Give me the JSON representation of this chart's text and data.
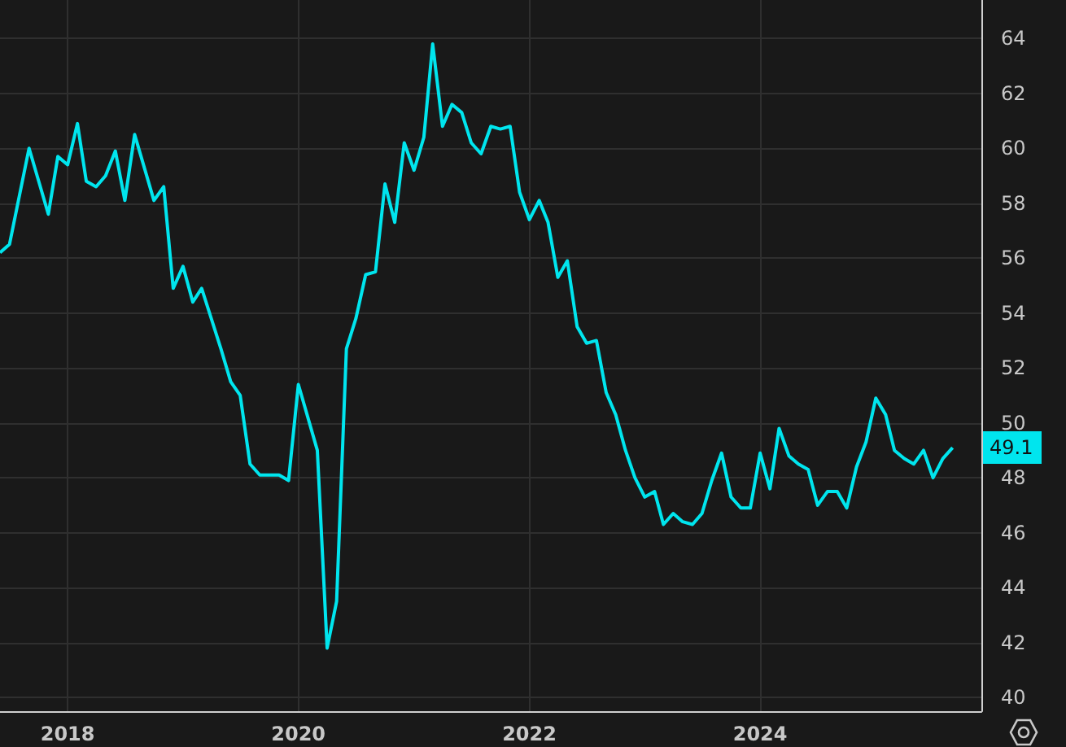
{
  "chart_data": {
    "type": "line",
    "color": "#00e5ee",
    "x": [
      "2017-06",
      "2017-07",
      "2017-09",
      "2017-11",
      "2017-12",
      "2018-01",
      "2018-02",
      "2018-03",
      "2018-04",
      "2018-05",
      "2018-06",
      "2018-07",
      "2018-08",
      "2018-10",
      "2018-11",
      "2018-12",
      "2019-01",
      "2019-02",
      "2019-03",
      "2019-05",
      "2019-06",
      "2019-07",
      "2019-08",
      "2019-09",
      "2019-11",
      "2019-12",
      "2020-01",
      "2020-03",
      "2020-04",
      "2020-05",
      "2020-06",
      "2020-07",
      "2020-08",
      "2020-09",
      "2020-10",
      "2020-11",
      "2020-12",
      "2021-01",
      "2021-02",
      "2021-03",
      "2021-04",
      "2021-05",
      "2021-06",
      "2021-07",
      "2021-08",
      "2021-09",
      "2021-10",
      "2021-11",
      "2021-12",
      "2022-01",
      "2022-02",
      "2022-03",
      "2022-04",
      "2022-05",
      "2022-06",
      "2022-07",
      "2022-08",
      "2022-09",
      "2022-10",
      "2022-11",
      "2022-12",
      "2023-01",
      "2023-02",
      "2023-03",
      "2023-04",
      "2023-05",
      "2023-06",
      "2023-07",
      "2023-08",
      "2023-09",
      "2023-10",
      "2023-11",
      "2023-12",
      "2024-01",
      "2024-02",
      "2024-03",
      "2024-04",
      "2024-05",
      "2024-06",
      "2024-07",
      "2024-08",
      "2024-09",
      "2024-10",
      "2024-11",
      "2024-12",
      "2025-01",
      "2025-02",
      "2025-03",
      "2025-04",
      "2025-05",
      "2025-06",
      "2025-07",
      "2025-08",
      "2025-09"
    ],
    "values": [
      56.2,
      56.5,
      60.0,
      57.6,
      59.7,
      59.4,
      60.9,
      58.8,
      58.6,
      59.0,
      59.9,
      58.1,
      60.5,
      58.1,
      58.6,
      54.9,
      55.7,
      54.4,
      54.9,
      52.7,
      51.5,
      51.0,
      48.5,
      48.1,
      48.1,
      47.9,
      51.4,
      49.0,
      41.8,
      43.5,
      52.7,
      53.8,
      55.4,
      55.5,
      58.7,
      57.3,
      60.2,
      59.2,
      60.4,
      63.8,
      60.8,
      61.6,
      61.3,
      60.2,
      59.8,
      60.8,
      60.7,
      60.8,
      58.4,
      57.4,
      58.1,
      57.3,
      55.3,
      55.9,
      53.5,
      52.9,
      53.0,
      51.1,
      50.3,
      49.0,
      48.0,
      47.3,
      47.5,
      46.3,
      46.7,
      46.4,
      46.3,
      46.7,
      47.9,
      48.9,
      47.3,
      46.9,
      46.9,
      48.9,
      47.6,
      49.8,
      48.8,
      48.5,
      48.3,
      47.0,
      47.5,
      47.5,
      46.9,
      48.4,
      49.3,
      50.9,
      50.3,
      49.0,
      48.7,
      48.5,
      49.0,
      48.0,
      48.7,
      49.1
    ],
    "xlim": [
      "2017-06",
      "2025-12"
    ],
    "xticks": [
      "2018",
      "2020",
      "2022",
      "2024"
    ],
    "ylim": [
      39.5,
      65.4
    ],
    "yticks": [
      40,
      42,
      44,
      46,
      48,
      50,
      52,
      54,
      56,
      58,
      60,
      62,
      64
    ],
    "grid": true,
    "annotations": [
      {
        "text": "49.1",
        "y": 49.1
      }
    ]
  }
}
